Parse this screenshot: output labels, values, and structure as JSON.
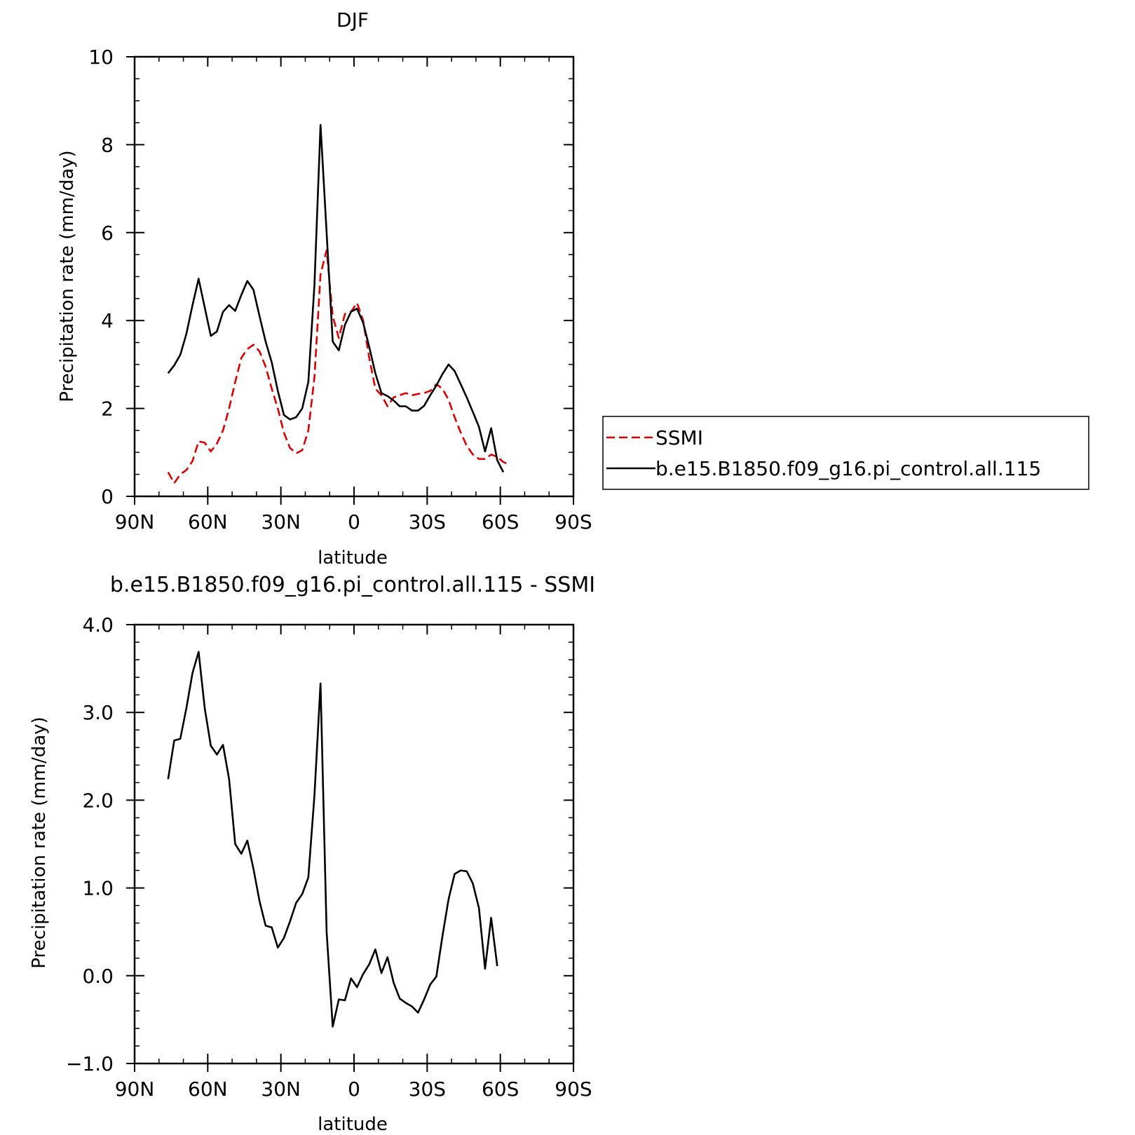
{
  "chart_data": [
    {
      "type": "line",
      "title": "DJF",
      "xlabel": "latitude",
      "ylabel": "Precipitation rate (mm/day)",
      "xlim": [
        90,
        -90
      ],
      "ylim": [
        0,
        10
      ],
      "x_ticks": [
        {
          "value": 90,
          "label": "90N"
        },
        {
          "value": 60,
          "label": "60N"
        },
        {
          "value": 30,
          "label": "30N"
        },
        {
          "value": 0,
          "label": "0"
        },
        {
          "value": -30,
          "label": "30S"
        },
        {
          "value": -60,
          "label": "60S"
        },
        {
          "value": -90,
          "label": "90S"
        }
      ],
      "y_ticks": [
        {
          "value": 0,
          "label": "0"
        },
        {
          "value": 2,
          "label": "2"
        },
        {
          "value": 4,
          "label": "4"
        },
        {
          "value": 6,
          "label": "6"
        },
        {
          "value": 8,
          "label": "8"
        },
        {
          "value": 10,
          "label": "10"
        }
      ],
      "legend": {
        "placement": "right"
      },
      "series": [
        {
          "name": "SSMI",
          "color": "#e00000",
          "dash": true,
          "x": [
            76.25,
            73.75,
            71.25,
            68.75,
            66.25,
            63.75,
            61.25,
            58.75,
            56.25,
            53.75,
            51.25,
            48.75,
            46.25,
            43.75,
            41.25,
            38.75,
            36.25,
            33.75,
            31.25,
            28.75,
            26.25,
            23.75,
            21.25,
            18.75,
            16.25,
            13.75,
            11.25,
            8.75,
            6.25,
            3.75,
            1.25,
            -1.25,
            -3.75,
            -6.25,
            -8.75,
            -11.25,
            -13.75,
            -16.25,
            -18.75,
            -21.25,
            -23.75,
            -26.25,
            -28.75,
            -31.25,
            -33.75,
            -36.25,
            -38.75,
            -41.25,
            -43.75,
            -46.25,
            -48.75,
            -51.25,
            -53.75,
            -56.25,
            -58.75,
            -61.25,
            -63.75,
            -66.25,
            -68.75,
            -71.25,
            -73.75,
            -76.25
          ],
          "y": [
            0.55,
            0.3,
            0.5,
            0.6,
            0.8,
            1.25,
            1.22,
            1.02,
            1.2,
            1.5,
            2.0,
            2.6,
            3.15,
            3.35,
            3.45,
            3.3,
            2.95,
            2.45,
            2.0,
            1.45,
            1.1,
            0.98,
            1.05,
            1.5,
            2.7,
            5.05,
            5.6,
            4.1,
            3.6,
            4.15,
            4.2,
            4.4,
            4.0,
            3.15,
            2.45,
            2.3,
            2.05,
            2.25,
            2.3,
            2.35,
            2.3,
            2.33,
            2.35,
            2.4,
            2.55,
            2.45,
            2.2,
            1.8,
            1.45,
            1.15,
            0.95,
            0.85,
            0.85,
            0.95,
            0.9,
            0.78,
            0.72,
            null,
            null,
            null,
            null,
            null
          ]
        },
        {
          "name": "b.e15.B1850.f09_g16.pi_control.all.115",
          "color": "#000000",
          "dash": false,
          "x": [
            76.25,
            73.75,
            71.25,
            68.75,
            66.25,
            63.75,
            61.25,
            58.75,
            56.25,
            53.75,
            51.25,
            48.75,
            46.25,
            43.75,
            41.25,
            38.75,
            36.25,
            33.75,
            31.25,
            28.75,
            26.25,
            23.75,
            21.25,
            18.75,
            16.25,
            13.75,
            11.25,
            8.75,
            6.25,
            3.75,
            1.25,
            -1.25,
            -3.75,
            -6.25,
            -8.75,
            -11.25,
            -13.75,
            -16.25,
            -18.75,
            -21.25,
            -23.75,
            -26.25,
            -28.75,
            -31.25,
            -33.75,
            -36.25,
            -38.75,
            -41.25,
            -43.75,
            -46.25,
            -48.75,
            -51.25,
            -53.75,
            -56.25,
            -58.75,
            -61.25,
            -63.75,
            -66.25,
            -68.75,
            -71.25,
            -73.75,
            -76.25
          ],
          "y": [
            2.8,
            2.98,
            3.22,
            3.7,
            4.35,
            4.95,
            4.3,
            3.65,
            3.75,
            4.2,
            4.35,
            4.22,
            4.58,
            4.9,
            4.7,
            4.1,
            3.52,
            3.05,
            2.4,
            1.85,
            1.75,
            1.8,
            2.0,
            2.6,
            4.8,
            8.45,
            6.0,
            3.52,
            3.32,
            3.9,
            4.2,
            4.27,
            3.95,
            3.4,
            2.8,
            2.35,
            2.28,
            2.18,
            2.05,
            2.05,
            1.95,
            1.95,
            2.06,
            2.3,
            2.52,
            2.78,
            3.0,
            2.85,
            2.55,
            2.25,
            1.92,
            1.58,
            1.02,
            1.55,
            0.82,
            0.55,
            null,
            null,
            null,
            null,
            null,
            null
          ]
        }
      ]
    },
    {
      "type": "line",
      "title": "b.e15.B1850.f09_g16.pi_control.all.115 - SSMI",
      "xlabel": "latitude",
      "ylabel": "Precipitation rate (mm/day)",
      "xlim": [
        90,
        -90
      ],
      "ylim": [
        -1.0,
        4.0
      ],
      "x_ticks": [
        {
          "value": 90,
          "label": "90N"
        },
        {
          "value": 60,
          "label": "60N"
        },
        {
          "value": 30,
          "label": "30N"
        },
        {
          "value": 0,
          "label": "0"
        },
        {
          "value": -30,
          "label": "30S"
        },
        {
          "value": -60,
          "label": "60S"
        },
        {
          "value": -90,
          "label": "90S"
        }
      ],
      "y_ticks": [
        {
          "value": -1.0,
          "label": "−1.0"
        },
        {
          "value": 0.0,
          "label": "0.0"
        },
        {
          "value": 1.0,
          "label": "1.0"
        },
        {
          "value": 2.0,
          "label": "2.0"
        },
        {
          "value": 3.0,
          "label": "3.0"
        },
        {
          "value": 4.0,
          "label": "4.0"
        }
      ],
      "series": [
        {
          "name": "",
          "color": "#000000",
          "dash": false,
          "x": [
            76.25,
            73.75,
            71.25,
            68.75,
            66.25,
            63.75,
            61.25,
            58.75,
            56.25,
            53.75,
            51.25,
            48.75,
            46.25,
            43.75,
            41.25,
            38.75,
            36.25,
            33.75,
            31.25,
            28.75,
            26.25,
            23.75,
            21.25,
            18.75,
            16.25,
            13.75,
            11.25,
            8.75,
            6.25,
            3.75,
            1.25,
            -1.25,
            -3.75,
            -6.25,
            -8.75,
            -11.25,
            -13.75,
            -16.25,
            -18.75,
            -21.25,
            -23.75,
            -26.25,
            -28.75,
            -31.25,
            -33.75,
            -36.25,
            -38.75,
            -41.25,
            -43.75,
            -46.25,
            -48.75,
            -51.25,
            -53.75,
            -56.25,
            -58.75,
            -61.25,
            -63.75,
            -66.25,
            -68.75,
            -71.25,
            -73.75,
            -76.25
          ],
          "y": [
            2.24,
            2.68,
            2.7,
            3.05,
            3.45,
            3.69,
            3.05,
            2.62,
            2.52,
            2.63,
            2.24,
            1.5,
            1.39,
            1.54,
            1.22,
            0.85,
            0.57,
            0.55,
            0.32,
            0.43,
            0.62,
            0.83,
            0.93,
            1.12,
            2.05,
            3.33,
            0.5,
            -0.58,
            -0.27,
            -0.28,
            -0.03,
            -0.13,
            0.02,
            0.13,
            0.3,
            0.03,
            0.21,
            -0.08,
            -0.26,
            -0.31,
            -0.35,
            -0.42,
            -0.27,
            -0.1,
            -0.01,
            0.45,
            0.87,
            1.16,
            1.2,
            1.19,
            1.05,
            0.77,
            0.08,
            0.66,
            0.11,
            null,
            null,
            null,
            null,
            null,
            null,
            null
          ]
        }
      ]
    }
  ]
}
